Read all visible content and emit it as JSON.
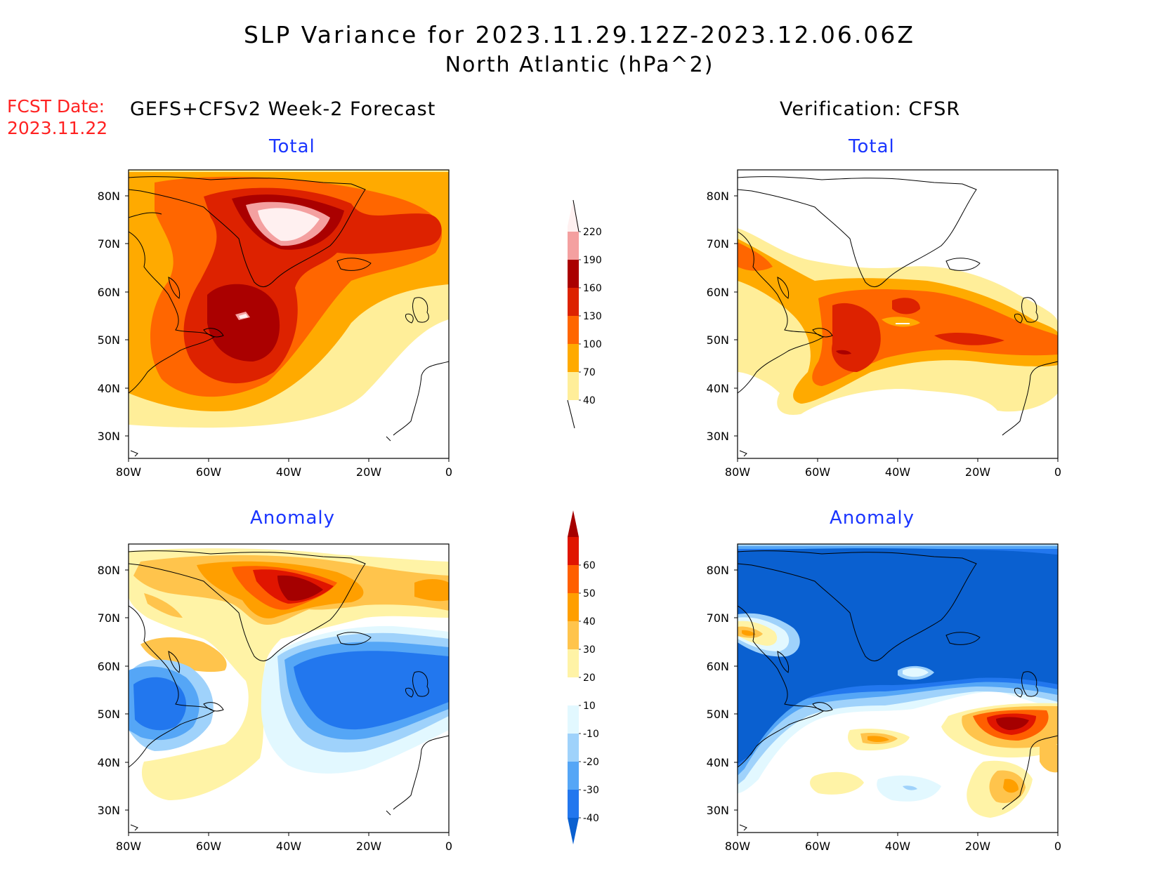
{
  "header": {
    "title": "SLP Variance for 2023.11.29.12Z-2023.12.06.06Z",
    "subtitle": "North Atlantic (hPa^2)",
    "fcst_label": "FCST Date:",
    "fcst_date": "2023.11.22",
    "left_column_title": "GEFS+CFSv2 Week-2 Forecast",
    "right_column_title": "Verification: CFSR"
  },
  "panels": {
    "total_title": "Total",
    "anomaly_title": "Anomaly",
    "x_ticks": [
      "80W",
      "60W",
      "40W",
      "20W",
      "0"
    ],
    "y_ticks": [
      "80N",
      "70N",
      "60N",
      "50N",
      "40N",
      "30N"
    ]
  },
  "colorbars": {
    "total": {
      "levels": [
        "40",
        "70",
        "100",
        "130",
        "160",
        "190",
        "220"
      ],
      "colors": [
        "#ffee99",
        "#ffaa00",
        "#ff6600",
        "#dd2200",
        "#aa0000",
        "#f4a0a0",
        "#fff0f0"
      ]
    },
    "anomaly": {
      "levels": [
        "-40",
        "-30",
        "-20",
        "-10",
        "10",
        "20",
        "30",
        "40",
        "50",
        "60"
      ],
      "colors": [
        "#0a60d0",
        "#2277ee",
        "#55a6f6",
        "#9fd2fb",
        "#e2f8ff",
        "#ffffff",
        "#fff3a6",
        "#ffc44c",
        "#ff9f00",
        "#ff5f00",
        "#e01500",
        "#a50000"
      ]
    }
  },
  "colors": {
    "title_red": "#ff2222",
    "panel_title_blue": "#1a35ff"
  }
}
